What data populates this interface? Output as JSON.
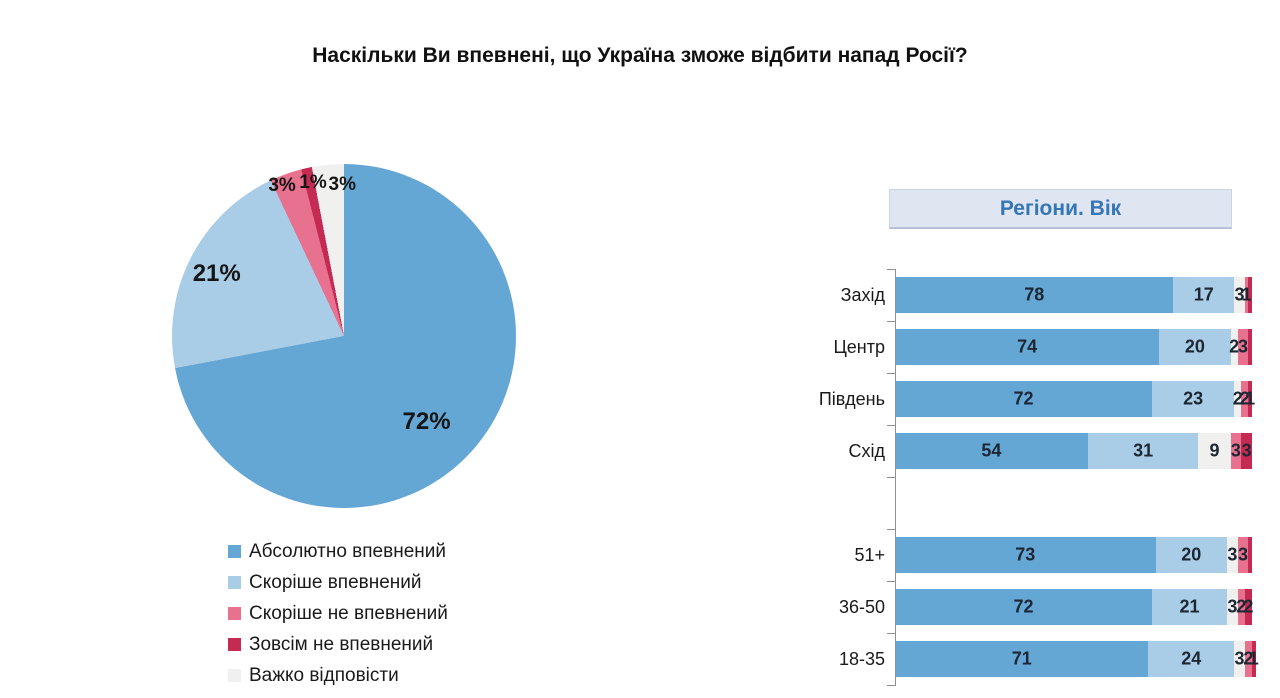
{
  "title": "Наскільки Ви впевнені, що Україна зможе відбити напад Росії?",
  "palette": {
    "absolutely_confident": "#64a6d4",
    "rather_confident": "#a9cde6",
    "hard_to_say": "#f0f0ee",
    "rather_not_confident": "#e7718f",
    "not_at_all_confident": "#c42a52"
  },
  "chart_data": [
    {
      "type": "pie",
      "legend_position": "bottom-left",
      "slices": [
        {
          "label": "Абсолютно впевнений",
          "value": 72,
          "display": "72%",
          "color": "#64a6d4"
        },
        {
          "label": "Скоріше впевнений",
          "value": 21,
          "display": "21%",
          "color": "#a9cde6"
        },
        {
          "label": "Скоріше не впевнений",
          "value": 3,
          "display": "3%",
          "color": "#e7718f"
        },
        {
          "label": "Зовсім не впевнений",
          "value": 1,
          "display": "1%",
          "color": "#c42a52"
        },
        {
          "label": "Важко відповісти",
          "value": 3,
          "display": "3%",
          "color": "#f0f0ee"
        }
      ]
    },
    {
      "type": "bar",
      "subtitle": "Регіони. Вік",
      "orientation": "horizontal-stacked",
      "xlim": [
        0,
        100
      ],
      "stack_order": [
        "Абсолютно впевнений",
        "Скоріше впевнений",
        "Важко відповісти",
        "Скоріше не впевнений",
        "Зовсім не впевнений"
      ],
      "stack_colors": [
        "#64a6d4",
        "#a9cde6",
        "#f0f0ee",
        "#e7718f",
        "#c42a52"
      ],
      "groups": [
        {
          "name": "Регіони",
          "rows": [
            {
              "category": "Захід",
              "values": [
                78,
                17,
                3,
                1,
                1
              ],
              "labels": [
                "78",
                "17",
                "3",
                "1",
                ""
              ]
            },
            {
              "category": "Центр",
              "values": [
                74,
                20,
                2,
                3,
                1
              ],
              "labels": [
                "74",
                "20",
                "2",
                "3",
                ""
              ]
            },
            {
              "category": "Південь",
              "values": [
                72,
                23,
                2,
                2,
                1
              ],
              "labels": [
                "72",
                "23",
                "2",
                "2",
                "1"
              ]
            },
            {
              "category": "Схід",
              "values": [
                54,
                31,
                9,
                3,
                3
              ],
              "labels": [
                "54",
                "31",
                "9",
                "3",
                "3"
              ]
            }
          ]
        },
        {
          "name": "Вік",
          "rows": [
            {
              "category": "51+",
              "values": [
                73,
                20,
                3,
                3,
                1
              ],
              "labels": [
                "73",
                "20",
                "3",
                "3",
                ""
              ]
            },
            {
              "category": "36-50",
              "values": [
                72,
                21,
                3,
                2,
                2
              ],
              "labels": [
                "72",
                "21",
                "3",
                "2",
                "2"
              ]
            },
            {
              "category": "18-35",
              "values": [
                71,
                24,
                3,
                2,
                1
              ],
              "labels": [
                "71",
                "24",
                "3",
                "2",
                "1"
              ]
            }
          ]
        }
      ]
    }
  ]
}
